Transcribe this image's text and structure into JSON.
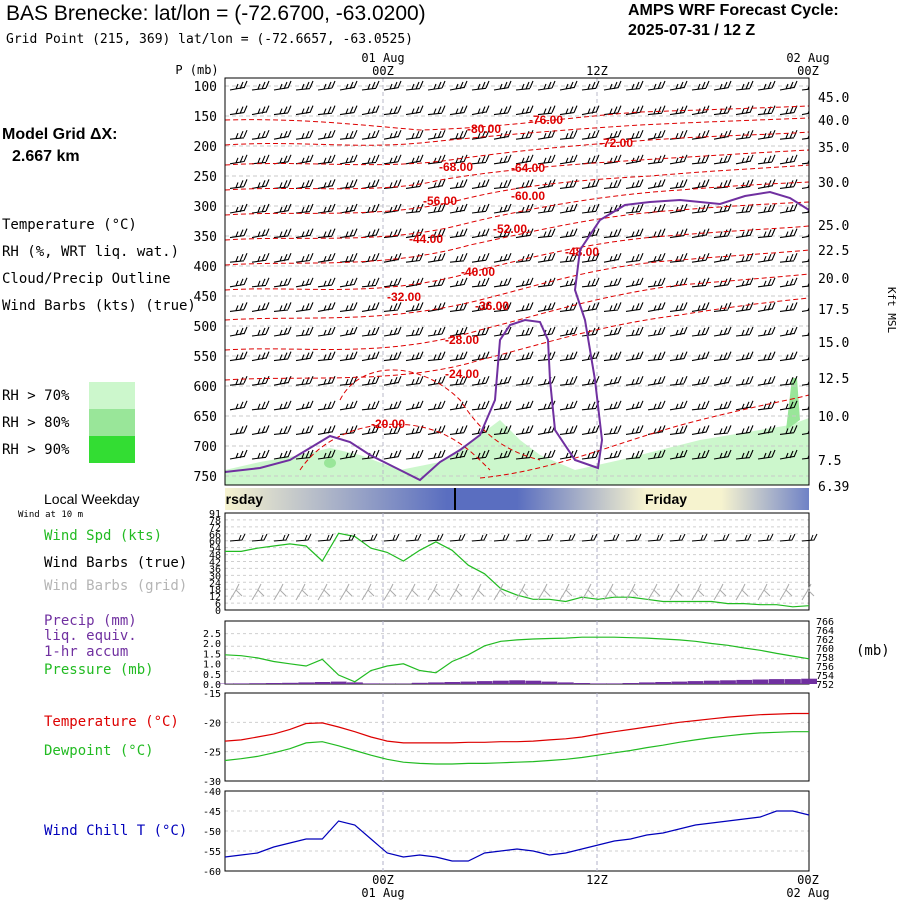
{
  "header": {
    "title": "BAS Brenecke:  lat/lon = (-72.6700, -63.0200)",
    "subtitle": "Grid Point (215, 369) lat/lon = (-72.6657, -63.0525)",
    "cycle_line1": "AMPS WRF Forecast Cycle:",
    "cycle_line2": "2025-07-31 / 12  Z"
  },
  "model_grid": {
    "label": "Model Grid ΔX:",
    "value": "2.667 km"
  },
  "legend": {
    "temperature": "Temperature (°C)",
    "rh": "RH (%, WRT liq. wat.)",
    "cloud": "Cloud/Precip Outline",
    "wind": "Wind Barbs (kts) (true)",
    "rh70": "RH > 70%",
    "rh80": "RH > 80%",
    "rh90": "RH > 90%"
  },
  "colors": {
    "temperature": "#dd0000",
    "rh": "#22bb22",
    "cloud": "#7030a0",
    "wind": "#000000",
    "rh70": "#ccf7cc",
    "rh80": "#99e699",
    "rh90": "#33dd33",
    "wind_chill": "#0000bb",
    "precip": "#7030a0",
    "pressure": "#22bb22"
  },
  "time_axis": {
    "top_date_left": "01 Aug",
    "top_date_right": "02 Aug",
    "ticks": [
      "00Z",
      "12Z",
      "00Z"
    ],
    "bottom_date_left": "01 Aug",
    "bottom_date_right": "02 Aug"
  },
  "weekday_bar": {
    "label": "Local Weekday",
    "days": [
      "Thursday",
      "Friday"
    ]
  },
  "panels": {
    "wind": {
      "small_label": "Wind at 10 m",
      "spd": "Wind Spd (kts)",
      "barbs_true": "Wind Barbs (true)",
      "barbs_grid": "Wind Barbs (grid)"
    },
    "precip": {
      "line1": "Precip (mm)",
      "line2": "liq. equiv.",
      "line3": "1-hr accum",
      "pressure": "Pressure (mb)",
      "right_unit": "(mb)"
    },
    "temp": {
      "temperature": "Temperature (°C)",
      "dewpoint": "Dewpoint (°C)"
    },
    "chill": {
      "label": "Wind Chill T (°C)"
    }
  },
  "chart_data": [
    {
      "type": "heatmap",
      "ylabel": "P (mb)",
      "y2label": "Kft MSL",
      "yticks": [
        100,
        150,
        200,
        250,
        300,
        350,
        400,
        450,
        500,
        550,
        600,
        650,
        700,
        750
      ],
      "y2ticks": [
        "45.0",
        "40.0",
        "35.0",
        "30.0",
        "25.0",
        "22.5",
        "20.0",
        "17.5",
        "15.0",
        "12.5",
        "10.0",
        "7.5",
        "6.39"
      ],
      "temperature_contour_labels": [
        "-80.00",
        "-76.00",
        "-72.00",
        "-68.00",
        "-64.00",
        "-60.00",
        "-56.00",
        "-52.00",
        "-48.00",
        "-44.00",
        "-40.00",
        "-36.00",
        "-32.00",
        "-28.00",
        "-24.00",
        "-20.00"
      ]
    },
    {
      "type": "line",
      "title": "Wind Spd (kts)",
      "yticks": [
        91,
        78,
        72,
        66,
        60,
        54,
        48,
        42,
        36,
        30,
        24,
        18,
        12,
        6,
        0
      ],
      "x": [
        0,
        1,
        2,
        3,
        4,
        5,
        6,
        7,
        8,
        9,
        10,
        11,
        12,
        13,
        14,
        15,
        16,
        17,
        18,
        19,
        20,
        21,
        22,
        23,
        24,
        25,
        26,
        27,
        28,
        29,
        30,
        31,
        32,
        33,
        34,
        35,
        36
      ],
      "values": [
        55,
        55,
        58,
        60,
        62,
        60,
        46,
        72,
        69,
        58,
        54,
        46,
        56,
        64,
        56,
        42,
        34,
        20,
        14,
        10,
        10,
        8,
        12,
        10,
        12,
        12,
        10,
        8,
        8,
        8,
        8,
        6,
        6,
        5,
        5,
        3,
        4
      ]
    },
    {
      "type": "line",
      "ylim": [
        0,
        2.5
      ],
      "y2lim": [
        752,
        766
      ],
      "yticks": [
        "2.5",
        "2.0",
        "1.5",
        "1.0",
        "0.5",
        "0.0"
      ],
      "y2ticks": [
        "766",
        "764",
        "762",
        "760",
        "758",
        "756",
        "754",
        "752"
      ],
      "series": [
        {
          "name": "Pressure (mb)",
          "values": [
            758.5,
            758.3,
            757.8,
            757.0,
            756.5,
            756.0,
            757.5,
            754.0,
            752.5,
            755.0,
            756.0,
            756.5,
            755.0,
            754.5,
            757.0,
            758.5,
            760.5,
            761.5,
            761.8,
            762.0,
            762.1,
            762.2,
            762.4,
            762.4,
            762.4,
            762.3,
            762.2,
            762.0,
            761.8,
            761.5,
            761.0,
            760.6,
            760.0,
            759.5,
            758.8,
            758.2,
            757.6
          ]
        },
        {
          "name": "Precip (mm)",
          "values": [
            0.02,
            0.03,
            0.04,
            0.05,
            0.06,
            0.08,
            0.1,
            0.12,
            0.08,
            0.03,
            0.02,
            0.02,
            0.06,
            0.08,
            0.1,
            0.12,
            0.14,
            0.16,
            0.18,
            0.16,
            0.12,
            0.08,
            0.05,
            0.03,
            0.03,
            0.05,
            0.08,
            0.1,
            0.12,
            0.14,
            0.16,
            0.18,
            0.2,
            0.22,
            0.24,
            0.24,
            0.26
          ]
        }
      ]
    },
    {
      "type": "line",
      "ylim": [
        -30,
        -15
      ],
      "yticks": [
        "-15",
        "-20",
        "-25",
        "-30"
      ],
      "series": [
        {
          "name": "Temperature (°C)",
          "values": [
            -23.2,
            -23.0,
            -22.5,
            -22.0,
            -21.2,
            -20.2,
            -20.1,
            -20.8,
            -21.6,
            -22.5,
            -23.2,
            -23.5,
            -23.5,
            -23.5,
            -23.5,
            -23.4,
            -23.4,
            -23.3,
            -23.3,
            -23.2,
            -23.0,
            -22.8,
            -22.5,
            -22.0,
            -21.6,
            -21.2,
            -20.8,
            -20.4,
            -20.0,
            -19.7,
            -19.4,
            -19.1,
            -18.9,
            -18.7,
            -18.6,
            -18.5,
            -18.5
          ]
        },
        {
          "name": "Dewpoint (°C)",
          "values": [
            -26.5,
            -26.2,
            -25.8,
            -25.2,
            -24.5,
            -23.5,
            -23.3,
            -24.0,
            -24.8,
            -25.6,
            -26.3,
            -26.8,
            -27.0,
            -27.1,
            -27.1,
            -27.0,
            -27.0,
            -26.9,
            -26.8,
            -26.7,
            -26.5,
            -26.3,
            -26.0,
            -25.6,
            -25.2,
            -24.8,
            -24.3,
            -23.9,
            -23.4,
            -23.0,
            -22.6,
            -22.3,
            -22.0,
            -21.8,
            -21.7,
            -21.6,
            -21.6
          ]
        }
      ]
    },
    {
      "type": "line",
      "ylim": [
        -60,
        -40
      ],
      "yticks": [
        "-40",
        "-45",
        "-50",
        "-55",
        "-60"
      ],
      "series": [
        {
          "name": "Wind Chill T (°C)",
          "values": [
            -56.5,
            -56.0,
            -55.5,
            -54.0,
            -53.0,
            -52.0,
            -52.0,
            -47.5,
            -48.5,
            -52.0,
            -55.5,
            -56.5,
            -56.0,
            -56.5,
            -57.5,
            -57.5,
            -55.5,
            -55.0,
            -54.5,
            -55.0,
            -56.0,
            -55.5,
            -54.5,
            -53.5,
            -52.5,
            -52.0,
            -51.0,
            -50.5,
            -49.5,
            -48.5,
            -48.0,
            -47.5,
            -47.0,
            -46.5,
            -45.0,
            -45.0,
            -46.0
          ]
        }
      ]
    }
  ]
}
